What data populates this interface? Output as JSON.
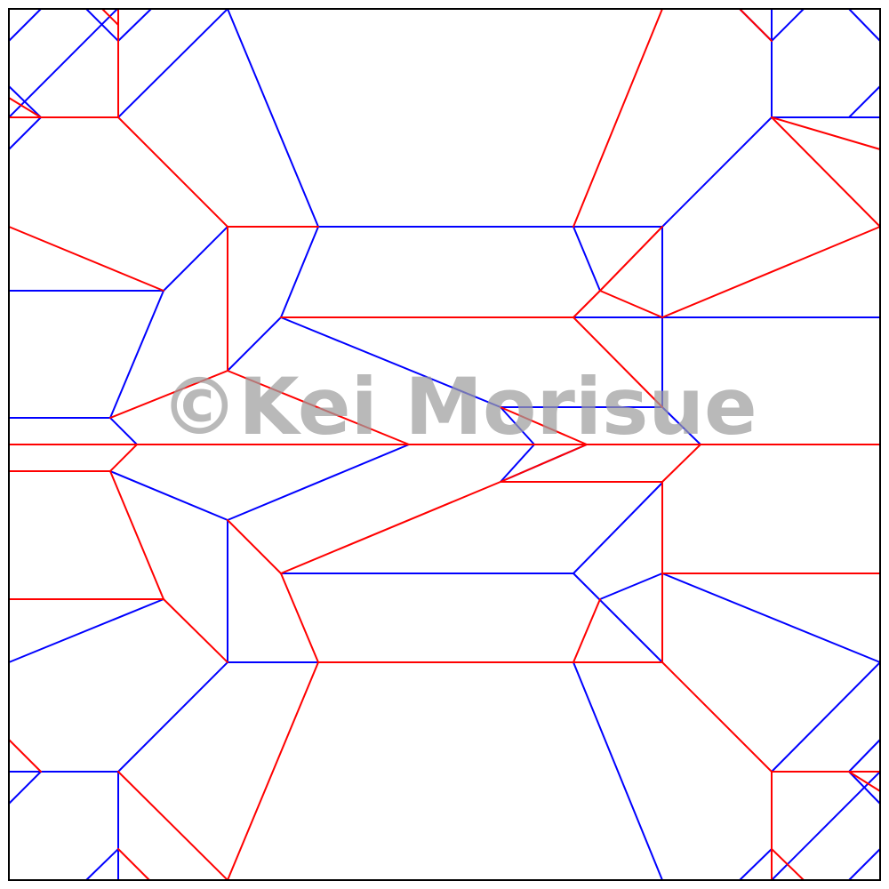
{
  "diagram": {
    "kind": "crease-pattern",
    "colors": {
      "mountain": "#ff0000",
      "valley": "#0000ff",
      "border": "#000000",
      "watermark": "#9e9e9e"
    },
    "watermark": "©Kei Morisue"
  }
}
